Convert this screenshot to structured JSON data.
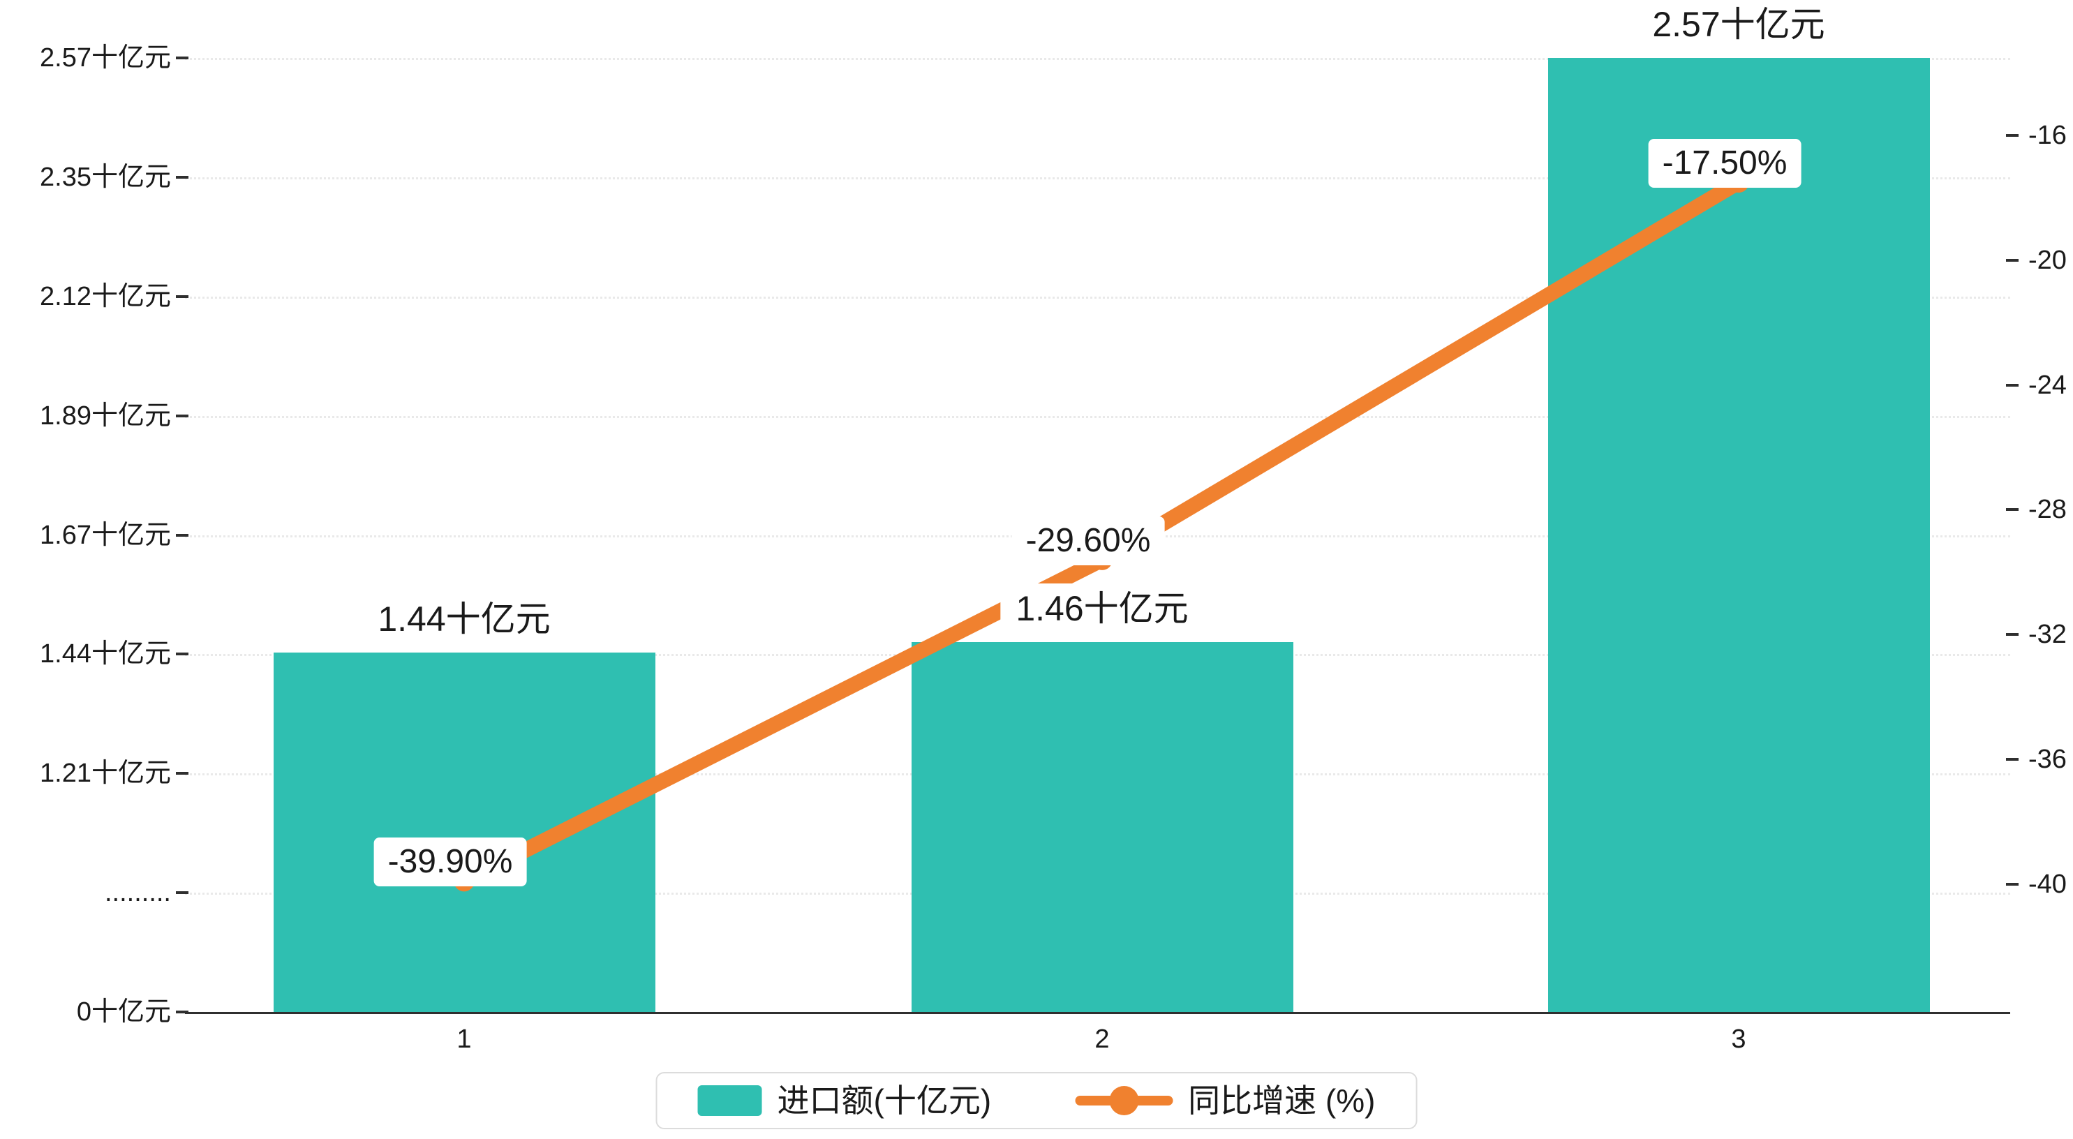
{
  "colors": {
    "bar": "#2FBFB1",
    "line": "#F0812F",
    "axis": "#2f2f2f",
    "grid": "#e9e9e9",
    "background": "#ffffff"
  },
  "chart_data": {
    "type": "bar+line",
    "categories": [
      "1",
      "2",
      "3"
    ],
    "series": [
      {
        "name": "进口额(十亿元)",
        "type": "bar",
        "values": [
          1.44,
          1.46,
          2.57
        ],
        "labels": [
          "1.44十亿元",
          "1.46十亿元",
          "2.57十亿元"
        ],
        "color": "#2FBFB1",
        "axis": "left"
      },
      {
        "name": "同比增速 (%)",
        "type": "line",
        "values": [
          -39.9,
          -29.6,
          -17.5
        ],
        "labels": [
          "-39.90%",
          "-29.60%",
          "-17.50%"
        ],
        "color": "#F0812F",
        "axis": "right"
      }
    ],
    "left_axis": {
      "ticks": [
        {
          "label": "2.57十亿元",
          "value": 2.57
        },
        {
          "label": "2.35十亿元",
          "value": 2.35
        },
        {
          "label": "2.12十亿元",
          "value": 2.12
        },
        {
          "label": "1.89十亿元",
          "value": 1.89
        },
        {
          "label": "1.67十亿元",
          "value": 1.67
        },
        {
          "label": "1.44十亿元",
          "value": 1.44
        },
        {
          "label": "1.21十亿元",
          "value": 1.21
        },
        {
          "label": ".........",
          "value": null
        },
        {
          "label": "0十亿元",
          "value": 0
        }
      ]
    },
    "right_axis": {
      "ticks": [
        "-16",
        "-20",
        "-24",
        "-28",
        "-32",
        "-36",
        "-40"
      ],
      "max": -16,
      "min": -40
    },
    "legend": [
      {
        "label": "进口额(十亿元)",
        "type": "bar",
        "color": "#2FBFB1"
      },
      {
        "label": "同比增速 (%)",
        "type": "line",
        "color": "#F0812F"
      }
    ],
    "grid": "horizontal-dotted",
    "legend_position": "bottom-center"
  }
}
